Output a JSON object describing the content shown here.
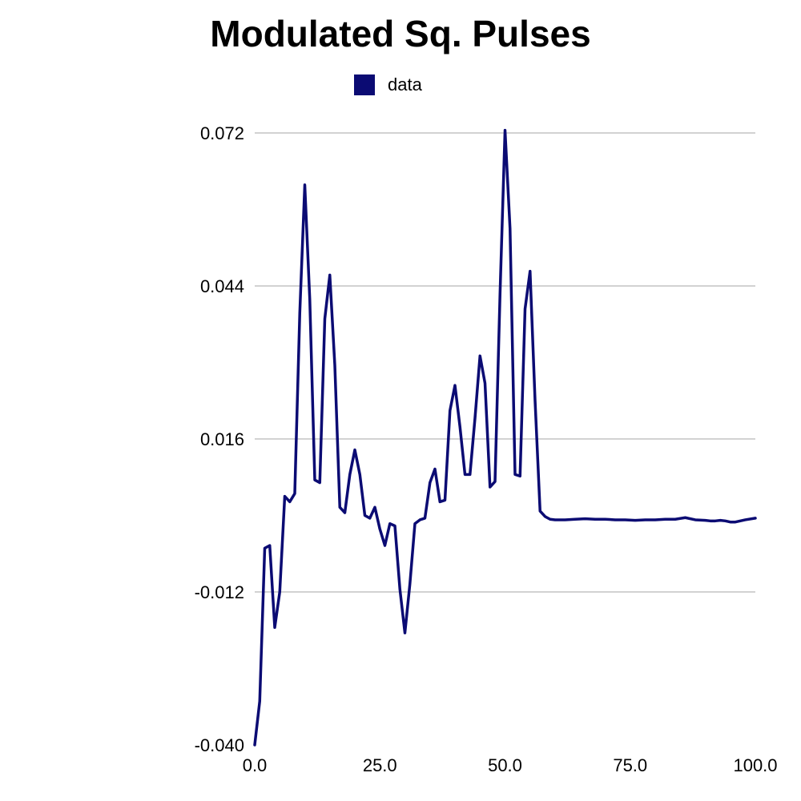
{
  "chart_data": {
    "type": "line",
    "title": "Modulated Sq. Pulses",
    "xlabel": "",
    "ylabel": "",
    "xlim": [
      0,
      100
    ],
    "ylim": [
      -0.04,
      0.072
    ],
    "x_ticks": [
      "0.0",
      "25.0",
      "50.0",
      "75.0",
      "100.0"
    ],
    "x_tick_values": [
      0,
      25,
      50,
      75,
      100
    ],
    "y_ticks": [
      "-0.040",
      "-0.012",
      "0.016",
      "0.044",
      "0.072"
    ],
    "y_tick_values": [
      -0.04,
      -0.012,
      0.016,
      0.044,
      0.072
    ],
    "grid": "horizontal",
    "legend_position": "top",
    "series": [
      {
        "name": "data",
        "color": "#0b0b73",
        "x": [
          0,
          1,
          2,
          3,
          4,
          5,
          6,
          7,
          8,
          9,
          10,
          11,
          12,
          13,
          14,
          15,
          16,
          17,
          18,
          19,
          20,
          21,
          22,
          23,
          24,
          25,
          26,
          27,
          28,
          29,
          30,
          31,
          32,
          33,
          34,
          35,
          36,
          37,
          38,
          39,
          40,
          41,
          42,
          43,
          44,
          45,
          46,
          47,
          48,
          49,
          50,
          51,
          52,
          53,
          54,
          55,
          56,
          57,
          58,
          59,
          60,
          62,
          64,
          66,
          68,
          70,
          72,
          74,
          76,
          78,
          80,
          82,
          84,
          86,
          88,
          90,
          91,
          92,
          93,
          94,
          95,
          96,
          98,
          100
        ],
        "y": [
          -0.04,
          -0.032,
          -0.004,
          -0.0035,
          -0.0185,
          -0.012,
          0.0055,
          0.0045,
          0.006,
          0.039,
          0.0625,
          0.0415,
          0.0085,
          0.008,
          0.038,
          0.046,
          0.0295,
          0.0035,
          0.0025,
          0.0095,
          0.014,
          0.0095,
          0.002,
          0.0015,
          0.0035,
          -0.0005,
          -0.0035,
          0.0005,
          0.0001,
          -0.0115,
          -0.0195,
          -0.0105,
          0.0005,
          0.0012,
          0.0015,
          0.008,
          0.0105,
          0.0045,
          0.0048,
          0.0212,
          0.0258,
          0.0182,
          0.0095,
          0.0095,
          0.0198,
          0.0312,
          0.0262,
          0.0072,
          0.0082,
          0.0425,
          0.0725,
          0.0545,
          0.0095,
          0.0092,
          0.0398,
          0.0467,
          0.023,
          0.0028,
          0.0018,
          0.0013,
          0.0012,
          0.0012,
          0.0013,
          0.0014,
          0.0013,
          0.0013,
          0.0012,
          0.0012,
          0.0011,
          0.0012,
          0.0012,
          0.0013,
          0.0013,
          0.0016,
          0.0012,
          0.0011,
          0.001,
          0.001,
          0.0011,
          0.001,
          0.0008,
          0.0008,
          0.0012,
          0.0015
        ]
      }
    ]
  }
}
